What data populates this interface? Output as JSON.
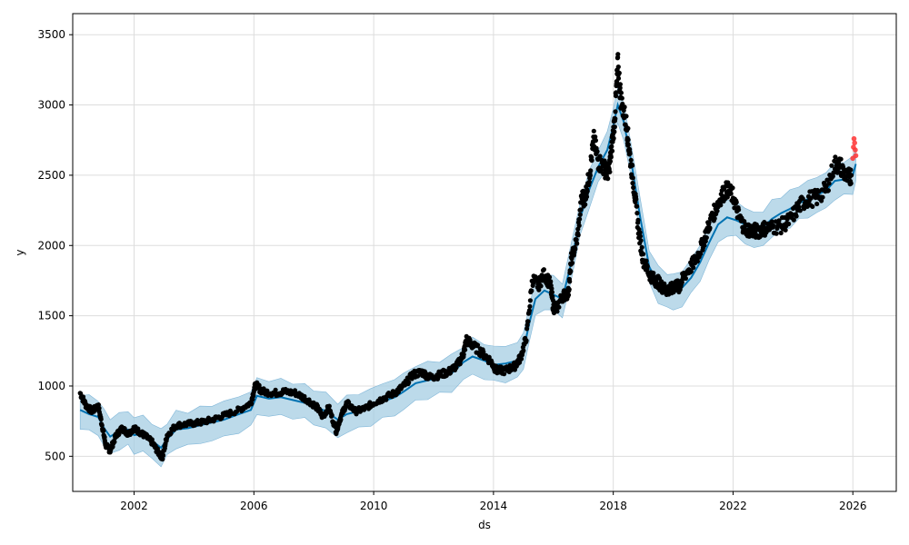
{
  "chart_data": {
    "type": "line",
    "xlabel": "ds",
    "ylabel": "y",
    "xlim": [
      1999.95,
      2027.45
    ],
    "ylim": [
      250,
      3650
    ],
    "grid": true,
    "x_ticks": [
      {
        "value": 2002,
        "label": "2002"
      },
      {
        "value": 2006,
        "label": "2006"
      },
      {
        "value": 2010,
        "label": "2010"
      },
      {
        "value": 2014,
        "label": "2014"
      },
      {
        "value": 2018,
        "label": "2018"
      },
      {
        "value": 2022,
        "label": "2022"
      },
      {
        "value": 2026,
        "label": "2026"
      }
    ],
    "y_ticks": [
      {
        "value": 500,
        "label": "500"
      },
      {
        "value": 1000,
        "label": "1000"
      },
      {
        "value": 1500,
        "label": "1500"
      },
      {
        "value": 2000,
        "label": "2000"
      },
      {
        "value": 2500,
        "label": "2500"
      },
      {
        "value": 3000,
        "label": "3000"
      },
      {
        "value": 3500,
        "label": "3500"
      }
    ],
    "colors": {
      "observed": "#000000",
      "recent": "#ff3333",
      "forecast": "#0072B2",
      "band": "#a6cde3"
    },
    "observed_path": [
      [
        2000.2,
        950
      ],
      [
        2000.4,
        860
      ],
      [
        2000.6,
        820
      ],
      [
        2000.8,
        860
      ],
      [
        2000.95,
        700
      ],
      [
        2001.05,
        580
      ],
      [
        2001.2,
        540
      ],
      [
        2001.4,
        650
      ],
      [
        2001.6,
        700
      ],
      [
        2001.8,
        660
      ],
      [
        2002.0,
        700
      ],
      [
        2002.2,
        670
      ],
      [
        2002.4,
        640
      ],
      [
        2002.6,
        600
      ],
      [
        2002.8,
        530
      ],
      [
        2002.95,
        490
      ],
      [
        2003.1,
        650
      ],
      [
        2003.4,
        720
      ],
      [
        2003.8,
        730
      ],
      [
        2004.2,
        740
      ],
      [
        2004.6,
        760
      ],
      [
        2005.0,
        790
      ],
      [
        2005.5,
        830
      ],
      [
        2005.9,
        880
      ],
      [
        2006.05,
        1010
      ],
      [
        2006.3,
        960
      ],
      [
        2006.7,
        950
      ],
      [
        2007.0,
        960
      ],
      [
        2007.4,
        950
      ],
      [
        2007.8,
        900
      ],
      [
        2008.1,
        850
      ],
      [
        2008.3,
        780
      ],
      [
        2008.5,
        850
      ],
      [
        2008.75,
        680
      ],
      [
        2008.9,
        780
      ],
      [
        2009.1,
        880
      ],
      [
        2009.4,
        820
      ],
      [
        2009.7,
        840
      ],
      [
        2010.0,
        880
      ],
      [
        2010.3,
        910
      ],
      [
        2010.7,
        950
      ],
      [
        2011.0,
        1000
      ],
      [
        2011.3,
        1080
      ],
      [
        2011.6,
        1100
      ],
      [
        2011.9,
        1060
      ],
      [
        2012.2,
        1080
      ],
      [
        2012.5,
        1100
      ],
      [
        2012.8,
        1150
      ],
      [
        2013.0,
        1230
      ],
      [
        2013.1,
        1330
      ],
      [
        2013.3,
        1290
      ],
      [
        2013.6,
        1240
      ],
      [
        2013.9,
        1180
      ],
      [
        2014.1,
        1110
      ],
      [
        2014.4,
        1110
      ],
      [
        2014.7,
        1140
      ],
      [
        2014.9,
        1200
      ],
      [
        2015.1,
        1350
      ],
      [
        2015.3,
        1760
      ],
      [
        2015.5,
        1720
      ],
      [
        2015.7,
        1800
      ],
      [
        2015.9,
        1720
      ],
      [
        2016.0,
        1560
      ],
      [
        2016.1,
        1550
      ],
      [
        2016.3,
        1640
      ],
      [
        2016.5,
        1660
      ],
      [
        2016.6,
        1900
      ],
      [
        2016.8,
        2050
      ],
      [
        2016.95,
        2350
      ],
      [
        2017.05,
        2330
      ],
      [
        2017.2,
        2500
      ],
      [
        2017.35,
        2750
      ],
      [
        2017.5,
        2600
      ],
      [
        2017.7,
        2550
      ],
      [
        2017.85,
        2520
      ],
      [
        2017.95,
        2700
      ],
      [
        2018.05,
        2900
      ],
      [
        2018.15,
        3300
      ],
      [
        2018.25,
        3050
      ],
      [
        2018.45,
        2850
      ],
      [
        2018.55,
        2650
      ],
      [
        2018.7,
        2400
      ],
      [
        2018.85,
        2100
      ],
      [
        2019.0,
        1900
      ],
      [
        2019.2,
        1800
      ],
      [
        2019.35,
        1760
      ],
      [
        2019.5,
        1740
      ],
      [
        2019.65,
        1700
      ],
      [
        2019.8,
        1680
      ],
      [
        2019.95,
        1690
      ],
      [
        2020.1,
        1720
      ],
      [
        2020.2,
        1700
      ],
      [
        2020.35,
        1780
      ],
      [
        2020.6,
        1850
      ],
      [
        2020.8,
        1920
      ],
      [
        2021.0,
        2020
      ],
      [
        2021.2,
        2150
      ],
      [
        2021.4,
        2250
      ],
      [
        2021.6,
        2350
      ],
      [
        2021.8,
        2400
      ],
      [
        2022.0,
        2350
      ],
      [
        2022.2,
        2200
      ],
      [
        2022.4,
        2120
      ],
      [
        2022.6,
        2110
      ],
      [
        2022.8,
        2100
      ],
      [
        2023.0,
        2120
      ],
      [
        2023.3,
        2130
      ],
      [
        2023.6,
        2140
      ],
      [
        2023.9,
        2180
      ],
      [
        2024.2,
        2280
      ],
      [
        2024.5,
        2330
      ],
      [
        2024.8,
        2340
      ],
      [
        2025.1,
        2400
      ],
      [
        2025.4,
        2580
      ],
      [
        2025.6,
        2560
      ],
      [
        2025.8,
        2480
      ],
      [
        2025.95,
        2500
      ]
    ],
    "recent_points": [
      [
        2026.0,
        2620
      ],
      [
        2026.02,
        2700
      ],
      [
        2026.04,
        2760
      ],
      [
        2026.06,
        2730
      ],
      [
        2026.08,
        2680
      ],
      [
        2026.1,
        2640
      ]
    ],
    "forecast_path": [
      [
        2000.2,
        830
      ],
      [
        2000.5,
        800
      ],
      [
        2000.8,
        780
      ],
      [
        2001.0,
        700
      ],
      [
        2001.2,
        640
      ],
      [
        2001.5,
        680
      ],
      [
        2001.8,
        690
      ],
      [
        2002.0,
        650
      ],
      [
        2002.3,
        660
      ],
      [
        2002.6,
        610
      ],
      [
        2002.9,
        560
      ],
      [
        2003.1,
        620
      ],
      [
        2003.4,
        690
      ],
      [
        2003.8,
        700
      ],
      [
        2004.2,
        720
      ],
      [
        2004.6,
        740
      ],
      [
        2005.0,
        760
      ],
      [
        2005.5,
        800
      ],
      [
        2005.9,
        830
      ],
      [
        2006.1,
        930
      ],
      [
        2006.5,
        910
      ],
      [
        2006.9,
        920
      ],
      [
        2007.3,
        900
      ],
      [
        2007.7,
        880
      ],
      [
        2008.0,
        860
      ],
      [
        2008.4,
        820
      ],
      [
        2008.8,
        760
      ],
      [
        2009.1,
        800
      ],
      [
        2009.5,
        820
      ],
      [
        2009.9,
        850
      ],
      [
        2010.3,
        890
      ],
      [
        2010.7,
        920
      ],
      [
        2011.0,
        960
      ],
      [
        2011.4,
        1020
      ],
      [
        2011.8,
        1040
      ],
      [
        2012.2,
        1060
      ],
      [
        2012.6,
        1090
      ],
      [
        2013.0,
        1170
      ],
      [
        2013.3,
        1210
      ],
      [
        2013.7,
        1180
      ],
      [
        2014.0,
        1150
      ],
      [
        2014.4,
        1160
      ],
      [
        2014.8,
        1180
      ],
      [
        2015.0,
        1250
      ],
      [
        2015.2,
        1450
      ],
      [
        2015.4,
        1620
      ],
      [
        2015.7,
        1680
      ],
      [
        2016.0,
        1650
      ],
      [
        2016.3,
        1620
      ],
      [
        2016.6,
        1880
      ],
      [
        2016.9,
        2200
      ],
      [
        2017.2,
        2400
      ],
      [
        2017.5,
        2560
      ],
      [
        2017.8,
        2680
      ],
      [
        2018.0,
        2850
      ],
      [
        2018.15,
        3000
      ],
      [
        2018.35,
        2880
      ],
      [
        2018.6,
        2600
      ],
      [
        2018.9,
        2200
      ],
      [
        2019.2,
        1850
      ],
      [
        2019.5,
        1720
      ],
      [
        2019.8,
        1690
      ],
      [
        2020.0,
        1660
      ],
      [
        2020.3,
        1700
      ],
      [
        2020.6,
        1770
      ],
      [
        2020.9,
        1880
      ],
      [
        2021.2,
        2020
      ],
      [
        2021.5,
        2150
      ],
      [
        2021.8,
        2200
      ],
      [
        2022.1,
        2180
      ],
      [
        2022.4,
        2150
      ],
      [
        2022.7,
        2100
      ],
      [
        2023.0,
        2130
      ],
      [
        2023.3,
        2190
      ],
      [
        2023.6,
        2230
      ],
      [
        2023.9,
        2260
      ],
      [
        2024.2,
        2300
      ],
      [
        2024.5,
        2330
      ],
      [
        2024.8,
        2360
      ],
      [
        2025.1,
        2390
      ],
      [
        2025.4,
        2460
      ],
      [
        2025.7,
        2470
      ],
      [
        2026.0,
        2500
      ],
      [
        2026.1,
        2580
      ]
    ],
    "band_halfwidth": 120
  }
}
